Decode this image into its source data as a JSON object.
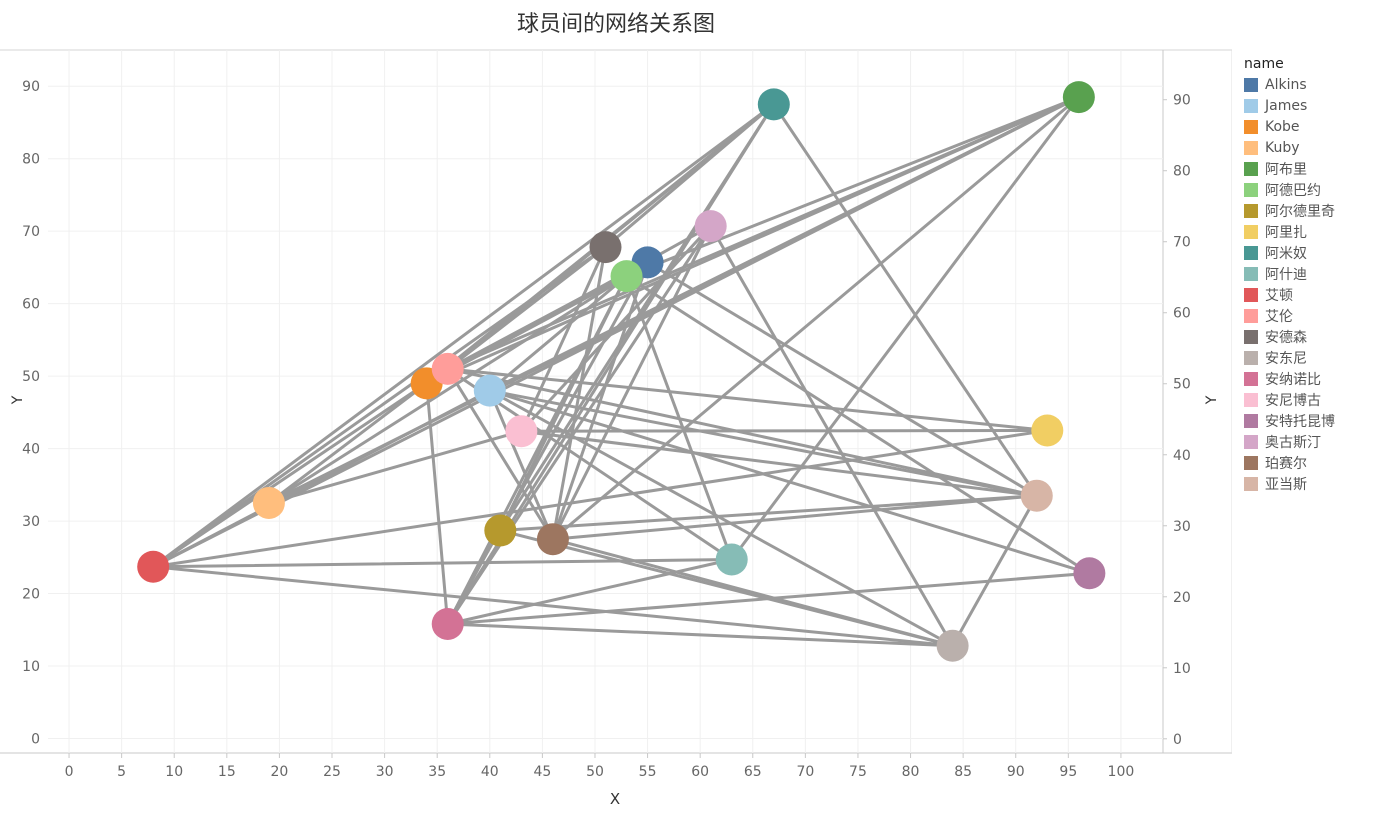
{
  "chart_data": {
    "type": "scatter",
    "title": "球员间的网络关系图",
    "xlabel": "X",
    "ylabel": "Y",
    "y2label": "Y",
    "xlim": [
      -2,
      104
    ],
    "ylim": [
      -2,
      95
    ],
    "xticks": [
      0,
      5,
      10,
      15,
      20,
      25,
      30,
      35,
      40,
      45,
      50,
      55,
      60,
      65,
      70,
      75,
      80,
      85,
      90,
      95,
      100
    ],
    "yticks": [
      0,
      10,
      20,
      30,
      40,
      50,
      60,
      70,
      80,
      90
    ],
    "y2lim": [
      -2,
      97
    ],
    "y2ticks": [
      0,
      10,
      20,
      30,
      40,
      50,
      60,
      70,
      80,
      90
    ],
    "grid": true,
    "legend": {
      "title": "name",
      "position": "right"
    },
    "nodes": [
      {
        "name": "Alkins",
        "x": 55,
        "y": 65.7,
        "color": "#4e79a7"
      },
      {
        "name": "James",
        "x": 40,
        "y": 48,
        "color": "#a0cbe8"
      },
      {
        "name": "Kobe",
        "x": 34,
        "y": 49,
        "color": "#f28e2b"
      },
      {
        "name": "Kuby",
        "x": 19,
        "y": 32.5,
        "color": "#ffbe7d"
      },
      {
        "name": "阿布里",
        "x": 96,
        "y": 88.5,
        "color": "#59a14f"
      },
      {
        "name": "阿德巴约",
        "x": 53,
        "y": 63.8,
        "color": "#8cd17d"
      },
      {
        "name": "阿尔德里奇",
        "x": 41,
        "y": 28.7,
        "color": "#b6992d"
      },
      {
        "name": "阿里扎",
        "x": 93,
        "y": 42.5,
        "color": "#f1ce63"
      },
      {
        "name": "阿米奴",
        "x": 67,
        "y": 87.5,
        "color": "#499894"
      },
      {
        "name": "阿什迪",
        "x": 63,
        "y": 24.7,
        "color": "#86bcb6"
      },
      {
        "name": "艾顿",
        "x": 8,
        "y": 23.7,
        "color": "#e15759"
      },
      {
        "name": "艾伦",
        "x": 36,
        "y": 51,
        "color": "#ff9d9a"
      },
      {
        "name": "安德森",
        "x": 51,
        "y": 67.8,
        "color": "#79706e"
      },
      {
        "name": "安东尼",
        "x": 84,
        "y": 12.8,
        "color": "#bab0ac"
      },
      {
        "name": "安纳诺比",
        "x": 36,
        "y": 15.8,
        "color": "#d37295"
      },
      {
        "name": "安尼博古",
        "x": 43,
        "y": 42.4,
        "color": "#fabfd2"
      },
      {
        "name": "安特托昆博",
        "x": 97,
        "y": 22.8,
        "color": "#b07aa1"
      },
      {
        "name": "奥古斯汀",
        "x": 61,
        "y": 70.7,
        "color": "#d4a6c8"
      },
      {
        "name": "珀赛尔",
        "x": 46,
        "y": 27.5,
        "color": "#9d7660"
      },
      {
        "name": "亚当斯",
        "x": 92,
        "y": 33.5,
        "color": "#d7b5a6"
      }
    ],
    "edges": [
      [
        "艾顿",
        "阿布里"
      ],
      [
        "艾顿",
        "阿米奴"
      ],
      [
        "艾顿",
        "艾伦"
      ],
      [
        "艾顿",
        "安德森"
      ],
      [
        "艾顿",
        "阿什迪"
      ],
      [
        "艾顿",
        "安东尼"
      ],
      [
        "艾顿",
        "阿里扎"
      ],
      [
        "艾顿",
        "James"
      ],
      [
        "Kuby",
        "阿布里"
      ],
      [
        "Kuby",
        "Kobe"
      ],
      [
        "Kuby",
        "阿德巴约"
      ],
      [
        "Kuby",
        "安尼博古"
      ],
      [
        "Kuby",
        "阿布里"
      ],
      [
        "Kobe",
        "阿布里"
      ],
      [
        "Kobe",
        "阿米奴"
      ],
      [
        "Kobe",
        "奥古斯汀"
      ],
      [
        "Kobe",
        "安纳诺比"
      ],
      [
        "Kobe",
        "Alkins"
      ],
      [
        "艾伦",
        "阿布里"
      ],
      [
        "艾伦",
        "安德森"
      ],
      [
        "艾伦",
        "阿米奴"
      ],
      [
        "艾伦",
        "阿里扎"
      ],
      [
        "艾伦",
        "亚当斯"
      ],
      [
        "艾伦",
        "珀赛尔"
      ],
      [
        "艾伦",
        "阿什迪"
      ],
      [
        "艾伦",
        "Alkins"
      ],
      [
        "James",
        "阿布里"
      ],
      [
        "James",
        "亚当斯"
      ],
      [
        "James",
        "安东尼"
      ],
      [
        "James",
        "珀赛尔"
      ],
      [
        "James",
        "阿德巴约"
      ],
      [
        "James",
        "安特托昆博"
      ],
      [
        "安尼博古",
        "阿里扎"
      ],
      [
        "安尼博古",
        "奥古斯汀"
      ],
      [
        "安尼博古",
        "安德森"
      ],
      [
        "安尼博古",
        "亚当斯"
      ],
      [
        "阿尔德里奇",
        "亚当斯"
      ],
      [
        "阿尔德里奇",
        "阿德巴约"
      ],
      [
        "阿尔德里奇",
        "阿米奴"
      ],
      [
        "阿尔德里奇",
        "安东尼"
      ],
      [
        "珀赛尔",
        "亚当斯"
      ],
      [
        "珀赛尔",
        "安东尼"
      ],
      [
        "珀赛尔",
        "阿布里"
      ],
      [
        "珀赛尔",
        "安德森"
      ],
      [
        "珀赛尔",
        "Alkins"
      ],
      [
        "珀赛尔",
        "奥古斯汀"
      ],
      [
        "安纳诺比",
        "阿德巴约"
      ],
      [
        "安纳诺比",
        "奥古斯汀"
      ],
      [
        "安纳诺比",
        "阿米奴"
      ],
      [
        "安纳诺比",
        "安东尼"
      ],
      [
        "安纳诺比",
        "安特托昆博"
      ],
      [
        "安纳诺比",
        "阿什迪"
      ],
      [
        "安纳诺比",
        "Alkins"
      ],
      [
        "阿什迪",
        "阿布里"
      ],
      [
        "阿什迪",
        "阿德巴约"
      ],
      [
        "阿米奴",
        "亚当斯"
      ],
      [
        "阿米奴",
        "安德森"
      ],
      [
        "奥古斯汀",
        "安东尼"
      ],
      [
        "Alkins",
        "亚当斯"
      ],
      [
        "安东尼",
        "亚当斯"
      ],
      [
        "阿德巴约",
        "安特托昆博"
      ],
      [
        "阿德巴约",
        "Kobe"
      ],
      [
        "阿布里",
        "阿德巴约"
      ]
    ]
  }
}
